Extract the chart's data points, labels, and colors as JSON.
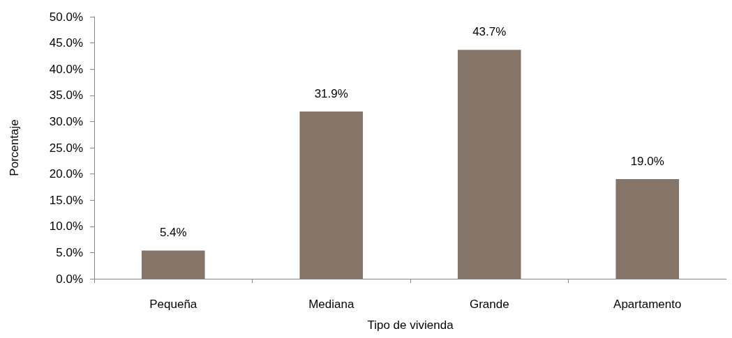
{
  "chart_data": {
    "type": "bar",
    "xlabel": "Tipo de vivienda",
    "ylabel": "Porcentaje",
    "categories": [
      "Pequeña",
      "Mediana",
      "Grande",
      "Apartamento"
    ],
    "values": [
      5.4,
      31.9,
      43.7,
      19.0
    ],
    "value_labels": [
      "5.4%",
      "31.9%",
      "43.7%",
      "19.0%"
    ],
    "color": "#857468",
    "ylim": [
      0,
      50
    ],
    "yticks": [
      {
        "value": 0,
        "label": "0.0%"
      },
      {
        "value": 5,
        "label": "5.0%"
      },
      {
        "value": 10,
        "label": "10.0%"
      },
      {
        "value": 15,
        "label": "15.0%"
      },
      {
        "value": 20,
        "label": "20.0%"
      },
      {
        "value": 25,
        "label": "25.0%"
      },
      {
        "value": 30,
        "label": "30.0%"
      },
      {
        "value": 35,
        "label": "35.0%"
      },
      {
        "value": 40,
        "label": "40.0%"
      },
      {
        "value": 45,
        "label": "45.0%"
      },
      {
        "value": 50,
        "label": "50.0%"
      }
    ],
    "grid": false
  }
}
